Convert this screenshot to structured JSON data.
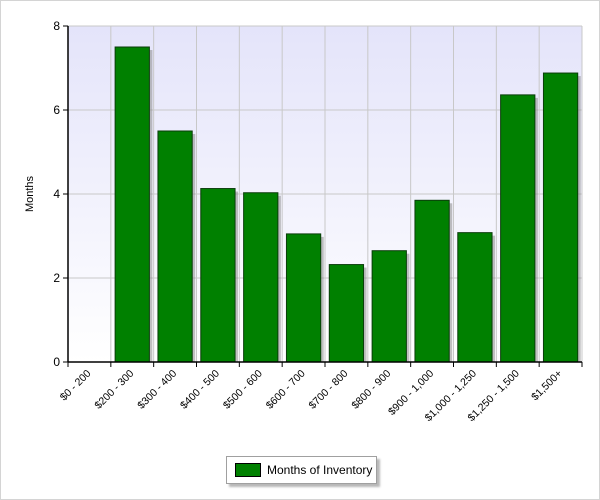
{
  "colors": {
    "bar": "#008000",
    "bar_border": "#0a3d0a",
    "plot_bg_top": "#e4e4fa",
    "plot_bg_bottom": "#ffffff",
    "grid": "#c8c8c8"
  },
  "chart_data": {
    "type": "bar",
    "title": "",
    "xlabel": "",
    "ylabel": "Months",
    "ylim": [
      0,
      8
    ],
    "yticks": [
      0,
      2,
      4,
      6,
      8
    ],
    "grid": true,
    "legend_placement": "bottom",
    "categories": [
      "$0 - 200",
      "$200 - 300",
      "$300 - 400",
      "$400 - 500",
      "$500 - 600",
      "$600 - 700",
      "$700 - 800",
      "$800 - 900",
      "$900 - 1,000",
      "$1,000 - 1,250",
      "$1,250 - 1,500",
      "$1,500+"
    ],
    "series": [
      {
        "name": "Months of Inventory",
        "values": [
          0,
          7.5,
          5.5,
          4.13,
          4.03,
          3.05,
          2.32,
          2.65,
          3.85,
          3.08,
          6.36,
          6.88
        ]
      }
    ]
  }
}
